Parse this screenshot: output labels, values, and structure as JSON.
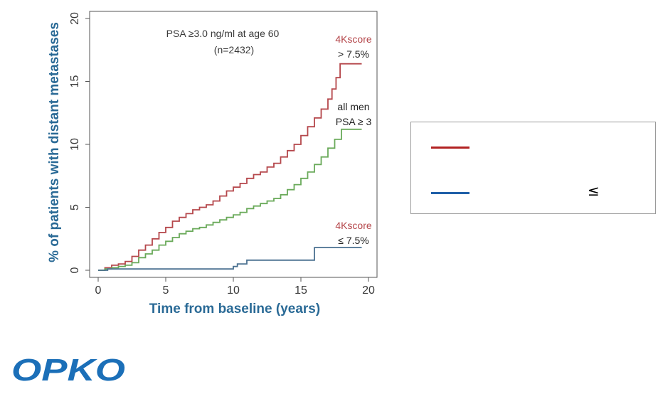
{
  "chart_data": {
    "type": "line",
    "title": "PSA ≥3.0 ng/ml at age 60",
    "subtitle": "(n=2432)",
    "xlabel": "Time from baseline (years)",
    "ylabel": "% of patients with distant metastases",
    "xlim": [
      0,
      20
    ],
    "ylim": [
      0,
      20
    ],
    "xticks": [
      0,
      5,
      10,
      15,
      20
    ],
    "yticks": [
      0,
      5,
      10,
      15,
      20
    ],
    "grid": false,
    "series": [
      {
        "label": [
          "4Kscore",
          "> 7.5%"
        ],
        "color": "#b5474b",
        "step": true,
        "x": [
          0,
          0.5,
          1.0,
          1.5,
          2.0,
          2.5,
          3.0,
          3.5,
          4.0,
          4.5,
          5.0,
          5.5,
          6.0,
          6.5,
          7.0,
          7.5,
          8.0,
          8.5,
          9.0,
          9.5,
          10.0,
          10.5,
          11.0,
          11.5,
          12.0,
          12.5,
          13.0,
          13.5,
          14.0,
          14.5,
          15.0,
          15.5,
          16.0,
          16.5,
          17.0,
          17.3,
          17.6,
          17.9,
          19.5
        ],
        "y": [
          0,
          0.2,
          0.4,
          0.5,
          0.7,
          1.1,
          1.6,
          2.0,
          2.5,
          3.0,
          3.4,
          3.9,
          4.2,
          4.5,
          4.8,
          5.0,
          5.2,
          5.5,
          5.9,
          6.3,
          6.6,
          6.9,
          7.3,
          7.6,
          7.8,
          8.2,
          8.5,
          9.0,
          9.5,
          10.0,
          10.7,
          11.4,
          12.1,
          12.8,
          13.6,
          14.4,
          15.3,
          16.4,
          16.4
        ]
      },
      {
        "label": [
          "all men",
          "PSA ≥ 3"
        ],
        "color": "#6aaa5a",
        "step": true,
        "x": [
          0,
          0.5,
          1.0,
          1.5,
          2.0,
          2.5,
          3.0,
          3.5,
          4.0,
          4.5,
          5.0,
          5.5,
          6.0,
          6.5,
          7.0,
          7.5,
          8.0,
          8.5,
          9.0,
          9.5,
          10.0,
          10.5,
          11.0,
          11.5,
          12.0,
          12.5,
          13.0,
          13.5,
          14.0,
          14.5,
          15.0,
          15.5,
          16.0,
          16.5,
          17.0,
          17.5,
          18.0,
          19.5
        ],
        "y": [
          0,
          0.1,
          0.2,
          0.3,
          0.4,
          0.6,
          1.0,
          1.3,
          1.6,
          2.0,
          2.3,
          2.6,
          2.9,
          3.1,
          3.3,
          3.4,
          3.6,
          3.8,
          4.0,
          4.2,
          4.4,
          4.6,
          4.9,
          5.1,
          5.3,
          5.5,
          5.7,
          6.0,
          6.4,
          6.8,
          7.3,
          7.8,
          8.4,
          9.0,
          9.7,
          10.4,
          11.2,
          11.2
        ]
      },
      {
        "label": [
          "4Kscore",
          "≤ 7.5%"
        ],
        "color": "#4a7090",
        "step": true,
        "x": [
          0,
          0.7,
          7.0,
          10.0,
          10.3,
          11.0,
          16.0,
          19.5
        ],
        "y": [
          0,
          0.1,
          0.1,
          0.3,
          0.5,
          0.8,
          1.8,
          1.8
        ]
      }
    ]
  },
  "legend": {
    "items": [
      {
        "color": "#b22222",
        "text": ""
      },
      {
        "color": "#1f5fa8",
        "text": ""
      }
    ],
    "symbol": "≤"
  },
  "logo": {
    "text": "OPKO",
    "color": "#1b6fb8"
  }
}
